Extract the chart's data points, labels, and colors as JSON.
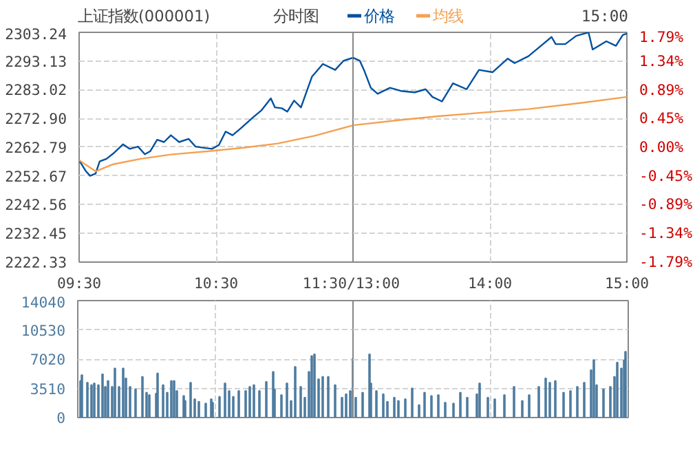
{
  "chart_data": [
    {
      "type": "line",
      "title": "上证指数(000001)",
      "subtitle": "分时图",
      "xlim": [
        9.5,
        11.5
      ],
      "xticks": [
        {
          "value": 9.5,
          "label": "09:30"
        },
        {
          "value": 10.5,
          "label": "10:30"
        },
        {
          "value": 11.5,
          "label": "11:30/13:00"
        }
      ],
      "ylim": [
        2222.33,
        2303.24
      ],
      "yticks": [
        2222.33,
        2232.45,
        2242.56,
        2252.67,
        2262.79,
        {
          "value": 2272.9,
          "label": "2272.90"
        },
        2283.02,
        2293.13,
        2303.24
      ],
      "grid": true,
      "legend": "top",
      "line_style": "solid",
      "series": [
        {
          "name": "价格",
          "color": "#0050a0",
          "x": [
            9.5,
            9.55,
            9.58,
            9.62,
            9.65,
            9.7,
            9.75,
            9.82,
            9.87,
            9.93,
            9.98,
            10.02,
            10.07,
            10.12,
            10.17,
            10.23,
            10.3,
            10.35,
            10.42,
            10.47,
            10.52,
            10.57,
            10.62,
            10.68,
            10.77,
            10.83,
            10.9,
            10.93,
            10.98,
            11.02,
            11.07,
            11.12,
            11.2,
            11.28,
            11.37,
            11.43,
            11.5
          ],
          "values": [
            2258.2,
            2254.3,
            2252.7,
            2253.5,
            2257.8,
            2258.7,
            2260.6,
            2263.8,
            2262.2,
            2263.0,
            2260.3,
            2261.4,
            2265.4,
            2264.6,
            2267.0,
            2264.6,
            2265.7,
            2263.0,
            2262.5,
            2262.2,
            2263.5,
            2268.3,
            2267.0,
            2269.4,
            2273.3,
            2275.7,
            2280.0,
            2276.8,
            2276.5,
            2275.3,
            2279.2,
            2276.8,
            2287.6,
            2292.1,
            2290.0,
            2293.2,
            2294.3
          ]
        },
        {
          "name": "均线",
          "color": "#f5a050",
          "x": [
            9.5,
            9.62,
            9.75,
            9.95,
            10.17,
            10.45,
            10.7,
            10.95,
            11.22,
            11.5
          ],
          "values": [
            2258.2,
            2254.3,
            2256.8,
            2258.7,
            2260.2,
            2261.4,
            2262.6,
            2264.1,
            2266.8,
            2270.5
          ]
        }
      ]
    },
    {
      "type": "line",
      "annotations": [
        "15:00"
      ],
      "tick_labels": "x",
      "xlim": [
        13,
        15
      ],
      "xticks": [
        {
          "value": 13,
          "label": null
        },
        {
          "value": 14,
          "label": "14:00"
        },
        {
          "value": 15,
          "label": "15:00"
        }
      ],
      "ylim": [
        2222.33,
        2303.24
      ],
      "yticks": [
        2222.33,
        2232.45,
        2242.56,
        2252.67,
        2262.79,
        2272.9,
        2283.02,
        2293.13,
        2303.24
      ],
      "y2lim": [
        -1.79,
        1.79
      ],
      "y2ticks": [
        {
          "value": -1.79,
          "label": "-1.79%"
        },
        {
          "value": -1.34,
          "label": "-1.34%"
        },
        {
          "value": -0.89,
          "label": "-0.89%"
        },
        {
          "value": -0.45,
          "label": "-0.45%"
        },
        {
          "value": 0,
          "label": "0.00%"
        },
        {
          "value": 0.45,
          "label": "0.45%"
        },
        {
          "value": 0.89,
          "label": "0.89%"
        },
        {
          "value": 1.34,
          "label": "1.34%"
        },
        {
          "value": 1.79,
          "label": "1.79%"
        }
      ],
      "grid": true,
      "line_style": "solid",
      "series": [
        {
          "color": "#0050a0",
          "x": [
            13,
            13.05,
            13.08,
            13.13,
            13.18,
            13.27,
            13.35,
            13.45,
            13.53,
            13.58,
            13.65,
            13.73,
            13.83,
            13.92,
            14.02,
            14.13,
            14.18,
            14.28,
            14.38,
            14.45,
            14.48,
            14.55,
            14.63,
            14.72,
            14.75,
            14.85,
            14.92,
            14.97,
            15
          ],
          "values": [
            2294.3,
            2293.2,
            2290.0,
            2283.7,
            2281.6,
            2283.7,
            2282.6,
            2282.1,
            2283.2,
            2280.5,
            2278.9,
            2285.3,
            2283.2,
            2290.0,
            2289.2,
            2294.0,
            2292.4,
            2294.8,
            2298.8,
            2301.6,
            2299.1,
            2299.1,
            2302.0,
            2303.2,
            2297.2,
            2300.1,
            2298.5,
            2302.3,
            2302.8
          ]
        },
        {
          "color": "#f5a050",
          "x": [
            13,
            13.33,
            13.62,
            13.95,
            14.28,
            14.67,
            15
          ],
          "values": [
            2270.5,
            2272.3,
            2273.7,
            2275.0,
            2276.2,
            2278.4,
            2280.5
          ]
        }
      ]
    },
    {
      "type": "bar",
      "xlim": [
        9.5,
        11.5
      ],
      "tick_labels": "y",
      "ylim": [
        0,
        14040
      ],
      "yticks": [
        0,
        3510,
        7020,
        10530,
        14040
      ],
      "grid": true,
      "color": "#4f7ca0",
      "x": [
        9.52,
        9.53,
        9.57,
        9.6,
        9.62,
        9.65,
        9.68,
        9.7,
        9.72,
        9.75,
        9.77,
        9.8,
        9.83,
        9.85,
        9.88,
        9.92,
        9.97,
        10,
        10.02,
        10.07,
        10.08,
        10.12,
        10.15,
        10.18,
        10.2,
        10.22,
        10.27,
        10.28,
        10.32,
        10.35,
        10.38,
        10.43,
        10.47,
        10.48,
        10.53,
        10.57,
        10.6,
        10.63,
        10.67,
        10.72,
        10.75,
        10.78,
        10.82,
        10.87,
        10.92,
        10.93,
        10.98,
        11.02,
        11.05,
        11.08,
        11.12,
        11.15,
        11.18,
        11.2,
        11.22,
        11.25,
        11.28,
        11.32,
        11.37,
        11.42,
        11.45,
        11.48,
        11.5
      ],
      "values": [
        4400,
        5100,
        4200,
        3900,
        4100,
        3900,
        5200,
        3700,
        4400,
        3700,
        5900,
        3700,
        5900,
        4700,
        3700,
        3400,
        4900,
        3000,
        2700,
        2900,
        5300,
        3900,
        3000,
        4400,
        4400,
        3200,
        2600,
        2000,
        4200,
        2200,
        1900,
        1700,
        2200,
        1800,
        2500,
        4100,
        3200,
        2500,
        3200,
        3200,
        3700,
        3900,
        3200,
        4300,
        5500,
        3400,
        2700,
        4100,
        2000,
        6100,
        3700,
        2400,
        5500,
        7400,
        7600,
        4600,
        4900,
        4900,
        3900,
        2400,
        2800,
        3200,
        7100
      ]
    },
    {
      "type": "bar",
      "xlim": [
        13,
        15
      ],
      "tick_labels": false,
      "ylim": [
        0,
        14040
      ],
      "yticks": [
        0,
        3510,
        7020,
        10530,
        14040
      ],
      "grid": true,
      "color": "#4f7ca0",
      "x": [
        13.02,
        13.07,
        13.12,
        13.13,
        13.17,
        13.22,
        13.25,
        13.3,
        13.33,
        13.38,
        13.43,
        13.48,
        13.52,
        13.57,
        13.62,
        13.67,
        13.73,
        13.78,
        13.83,
        13.9,
        13.92,
        13.98,
        14.03,
        14.1,
        14.17,
        14.23,
        14.28,
        14.35,
        14.4,
        14.43,
        14.47,
        14.53,
        14.58,
        14.63,
        14.68,
        14.73,
        14.75,
        14.77,
        14.82,
        14.87,
        14.9,
        14.92,
        14.95,
        14.97,
        14.98
      ],
      "values": [
        2400,
        3000,
        7600,
        4100,
        3200,
        2800,
        1900,
        2400,
        2000,
        2200,
        3500,
        1500,
        3000,
        2600,
        2700,
        1800,
        1700,
        3000,
        2400,
        2800,
        4100,
        2400,
        2200,
        2700,
        3700,
        2000,
        2700,
        3700,
        4700,
        4200,
        4400,
        3000,
        3200,
        3700,
        4200,
        5700,
        6900,
        3900,
        3400,
        3700,
        4900,
        6600,
        5900,
        6900,
        7900
      ]
    }
  ]
}
